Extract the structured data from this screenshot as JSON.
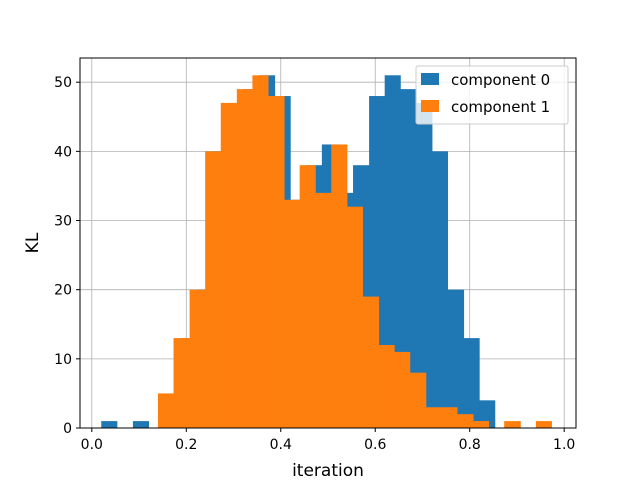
{
  "chart_data": {
    "type": "bar",
    "title": "",
    "xlabel": "iteration",
    "ylabel": "KL",
    "xlim": [
      -0.025,
      1.025
    ],
    "ylim": [
      0,
      53.5
    ],
    "xticks": [
      0.0,
      0.2,
      0.4,
      0.6,
      0.8,
      1.0
    ],
    "xtick_labels": [
      "0.0",
      "0.2",
      "0.4",
      "0.6",
      "0.8",
      "1.0"
    ],
    "yticks": [
      0,
      10,
      20,
      30,
      40,
      50
    ],
    "ytick_labels": [
      "0",
      "10",
      "20",
      "30",
      "40",
      "50"
    ],
    "grid": true,
    "legend_position": "top-right",
    "series": [
      {
        "name": "component 0",
        "color": "#1f77b4",
        "bins": [
          {
            "x0": 0.02,
            "x1": 0.053,
            "value": 1
          },
          {
            "x0": 0.087,
            "x1": 0.12,
            "value": 1
          },
          {
            "x0": 0.153,
            "x1": 0.187,
            "value": 4
          },
          {
            "x0": 0.187,
            "x1": 0.22,
            "value": 13
          },
          {
            "x0": 0.22,
            "x1": 0.253,
            "value": 20
          },
          {
            "x0": 0.253,
            "x1": 0.287,
            "value": 40
          },
          {
            "x0": 0.287,
            "x1": 0.32,
            "value": 47
          },
          {
            "x0": 0.32,
            "x1": 0.353,
            "value": 49
          },
          {
            "x0": 0.353,
            "x1": 0.387,
            "value": 51
          },
          {
            "x0": 0.387,
            "x1": 0.42,
            "value": 48
          },
          {
            "x0": 0.42,
            "x1": 0.453,
            "value": 33
          },
          {
            "x0": 0.453,
            "x1": 0.487,
            "value": 38
          },
          {
            "x0": 0.487,
            "x1": 0.52,
            "value": 41
          },
          {
            "x0": 0.52,
            "x1": 0.553,
            "value": 34
          },
          {
            "x0": 0.553,
            "x1": 0.587,
            "value": 38
          },
          {
            "x0": 0.587,
            "x1": 0.62,
            "value": 48
          },
          {
            "x0": 0.62,
            "x1": 0.653,
            "value": 51
          },
          {
            "x0": 0.653,
            "x1": 0.687,
            "value": 49
          },
          {
            "x0": 0.687,
            "x1": 0.72,
            "value": 47
          },
          {
            "x0": 0.72,
            "x1": 0.753,
            "value": 40
          },
          {
            "x0": 0.753,
            "x1": 0.787,
            "value": 20
          },
          {
            "x0": 0.787,
            "x1": 0.82,
            "value": 13
          },
          {
            "x0": 0.82,
            "x1": 0.853,
            "value": 4
          }
        ]
      },
      {
        "name": "component 1",
        "color": "#ff7f0e",
        "bins": [
          {
            "x0": 0.14,
            "x1": 0.173,
            "value": 5
          },
          {
            "x0": 0.173,
            "x1": 0.207,
            "value": 13
          },
          {
            "x0": 0.207,
            "x1": 0.24,
            "value": 20
          },
          {
            "x0": 0.24,
            "x1": 0.273,
            "value": 40
          },
          {
            "x0": 0.273,
            "x1": 0.307,
            "value": 47
          },
          {
            "x0": 0.307,
            "x1": 0.34,
            "value": 49
          },
          {
            "x0": 0.34,
            "x1": 0.373,
            "value": 51
          },
          {
            "x0": 0.373,
            "x1": 0.407,
            "value": 48
          },
          {
            "x0": 0.407,
            "x1": 0.44,
            "value": 33
          },
          {
            "x0": 0.44,
            "x1": 0.473,
            "value": 38
          },
          {
            "x0": 0.473,
            "x1": 0.507,
            "value": 34
          },
          {
            "x0": 0.507,
            "x1": 0.54,
            "value": 41
          },
          {
            "x0": 0.54,
            "x1": 0.573,
            "value": 32
          },
          {
            "x0": 0.573,
            "x1": 0.607,
            "value": 19
          },
          {
            "x0": 0.607,
            "x1": 0.64,
            "value": 12
          },
          {
            "x0": 0.64,
            "x1": 0.673,
            "value": 11
          },
          {
            "x0": 0.673,
            "x1": 0.707,
            "value": 8
          },
          {
            "x0": 0.707,
            "x1": 0.74,
            "value": 3
          },
          {
            "x0": 0.74,
            "x1": 0.773,
            "value": 3
          },
          {
            "x0": 0.773,
            "x1": 0.807,
            "value": 2
          },
          {
            "x0": 0.807,
            "x1": 0.84,
            "value": 1
          },
          {
            "x0": 0.873,
            "x1": 0.907,
            "value": 1
          },
          {
            "x0": 0.94,
            "x1": 0.973,
            "value": 1
          }
        ]
      }
    ]
  }
}
